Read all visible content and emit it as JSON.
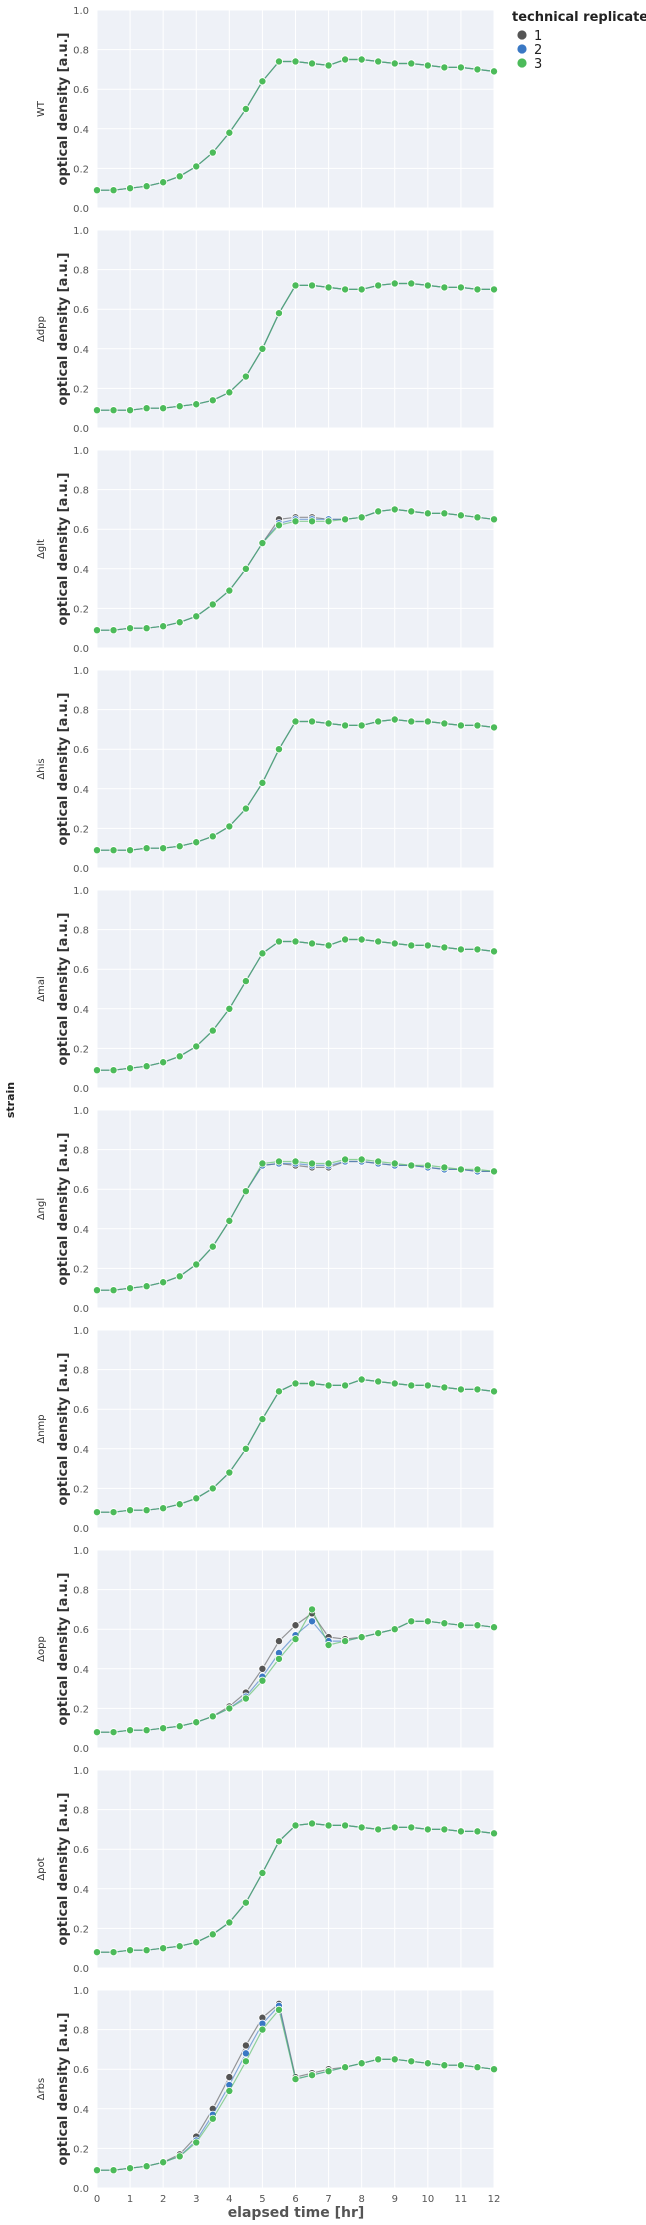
{
  "legend": {
    "title": "technical replicate",
    "entries": [
      {
        "label": "1",
        "color": "#555555"
      },
      {
        "label": "2",
        "color": "#3a78c4"
      },
      {
        "label": "3",
        "color": "#4cbb5a"
      }
    ]
  },
  "labels": {
    "y": "optical density [a.u.]",
    "x": "elapsed time [hr]",
    "row": "strain"
  },
  "chart_data": {
    "type": "scatter",
    "xlim": [
      0,
      12
    ],
    "ylim": [
      0,
      1.0
    ],
    "x_ticks": [
      "0",
      "1",
      "2",
      "3",
      "4",
      "5",
      "6",
      "7",
      "8",
      "9",
      "10",
      "11",
      "12"
    ],
    "y_ticks": [
      "0.0",
      "0.2",
      "0.4",
      "0.6",
      "0.8",
      "1.0"
    ],
    "grid": true,
    "legend_placement": "top-right, outside",
    "x": [
      0.0,
      0.5,
      1.0,
      1.5,
      2.0,
      2.5,
      3.0,
      3.5,
      4.0,
      4.5,
      5.0,
      5.5,
      6.0,
      6.5,
      7.0,
      7.5,
      8.0,
      8.5,
      9.0,
      9.5,
      10.0,
      10.5,
      11.0,
      11.5,
      12.0
    ],
    "panels": [
      {
        "strain": "WT",
        "series": [
          {
            "name": "1",
            "values": [
              0.09,
              0.09,
              0.1,
              0.11,
              0.13,
              0.16,
              0.21,
              0.28,
              0.38,
              0.5,
              0.64,
              0.74,
              0.74,
              0.73,
              0.72,
              0.75,
              0.75,
              0.74,
              0.73,
              0.73,
              0.72,
              0.71,
              0.71,
              0.7,
              0.69
            ]
          },
          {
            "name": "2",
            "values": [
              0.09,
              0.09,
              0.1,
              0.11,
              0.13,
              0.16,
              0.21,
              0.28,
              0.38,
              0.5,
              0.64,
              0.74,
              0.74,
              0.73,
              0.72,
              0.75,
              0.75,
              0.74,
              0.73,
              0.73,
              0.72,
              0.71,
              0.71,
              0.7,
              0.69
            ]
          },
          {
            "name": "3",
            "values": [
              0.09,
              0.09,
              0.1,
              0.11,
              0.13,
              0.16,
              0.21,
              0.28,
              0.38,
              0.5,
              0.64,
              0.74,
              0.74,
              0.73,
              0.72,
              0.75,
              0.75,
              0.74,
              0.73,
              0.73,
              0.72,
              0.71,
              0.71,
              0.7,
              0.69
            ]
          }
        ]
      },
      {
        "strain": "Δdpp",
        "series": [
          {
            "name": "1",
            "values": [
              0.09,
              0.09,
              0.09,
              0.1,
              0.1,
              0.11,
              0.12,
              0.14,
              0.18,
              0.26,
              0.4,
              0.58,
              0.72,
              0.72,
              0.71,
              0.7,
              0.7,
              0.72,
              0.73,
              0.73,
              0.72,
              0.71,
              0.71,
              0.7,
              0.7
            ]
          },
          {
            "name": "2",
            "values": [
              0.09,
              0.09,
              0.09,
              0.1,
              0.1,
              0.11,
              0.12,
              0.14,
              0.18,
              0.26,
              0.4,
              0.58,
              0.72,
              0.72,
              0.71,
              0.7,
              0.7,
              0.72,
              0.73,
              0.73,
              0.72,
              0.71,
              0.71,
              0.7,
              0.7
            ]
          },
          {
            "name": "3",
            "values": [
              0.09,
              0.09,
              0.09,
              0.1,
              0.1,
              0.11,
              0.12,
              0.14,
              0.18,
              0.26,
              0.4,
              0.58,
              0.72,
              0.72,
              0.71,
              0.7,
              0.7,
              0.72,
              0.73,
              0.73,
              0.72,
              0.71,
              0.71,
              0.7,
              0.7
            ]
          }
        ]
      },
      {
        "strain": "Δglt",
        "series": [
          {
            "name": "1",
            "values": [
              0.09,
              0.09,
              0.1,
              0.1,
              0.11,
              0.13,
              0.16,
              0.22,
              0.29,
              0.4,
              0.53,
              0.65,
              0.66,
              0.66,
              0.65,
              0.65,
              0.66,
              0.69,
              0.7,
              0.69,
              0.68,
              0.68,
              0.67,
              0.66,
              0.65
            ]
          },
          {
            "name": "2",
            "values": [
              0.09,
              0.09,
              0.1,
              0.1,
              0.11,
              0.13,
              0.16,
              0.22,
              0.29,
              0.4,
              0.53,
              0.63,
              0.65,
              0.65,
              0.65,
              0.65,
              0.66,
              0.69,
              0.7,
              0.69,
              0.68,
              0.68,
              0.67,
              0.66,
              0.65
            ]
          },
          {
            "name": "3",
            "values": [
              0.09,
              0.09,
              0.1,
              0.1,
              0.11,
              0.13,
              0.16,
              0.22,
              0.29,
              0.4,
              0.53,
              0.62,
              0.64,
              0.64,
              0.64,
              0.65,
              0.66,
              0.69,
              0.7,
              0.69,
              0.68,
              0.68,
              0.67,
              0.66,
              0.65
            ]
          }
        ]
      },
      {
        "strain": "Δhis",
        "series": [
          {
            "name": "1",
            "values": [
              0.09,
              0.09,
              0.09,
              0.1,
              0.1,
              0.11,
              0.13,
              0.16,
              0.21,
              0.3,
              0.43,
              0.6,
              0.74,
              0.74,
              0.73,
              0.72,
              0.72,
              0.74,
              0.75,
              0.74,
              0.74,
              0.73,
              0.72,
              0.72,
              0.71
            ]
          },
          {
            "name": "2",
            "values": [
              0.09,
              0.09,
              0.09,
              0.1,
              0.1,
              0.11,
              0.13,
              0.16,
              0.21,
              0.3,
              0.43,
              0.6,
              0.74,
              0.74,
              0.73,
              0.72,
              0.72,
              0.74,
              0.75,
              0.74,
              0.74,
              0.73,
              0.72,
              0.72,
              0.71
            ]
          },
          {
            "name": "3",
            "values": [
              0.09,
              0.09,
              0.09,
              0.1,
              0.1,
              0.11,
              0.13,
              0.16,
              0.21,
              0.3,
              0.43,
              0.6,
              0.74,
              0.74,
              0.73,
              0.72,
              0.72,
              0.74,
              0.75,
              0.74,
              0.74,
              0.73,
              0.72,
              0.72,
              0.71
            ]
          }
        ]
      },
      {
        "strain": "Δmal",
        "series": [
          {
            "name": "1",
            "values": [
              0.09,
              0.09,
              0.1,
              0.11,
              0.13,
              0.16,
              0.21,
              0.29,
              0.4,
              0.54,
              0.68,
              0.74,
              0.74,
              0.73,
              0.72,
              0.75,
              0.75,
              0.74,
              0.73,
              0.72,
              0.72,
              0.71,
              0.7,
              0.7,
              0.69
            ]
          },
          {
            "name": "2",
            "values": [
              0.09,
              0.09,
              0.1,
              0.11,
              0.13,
              0.16,
              0.21,
              0.29,
              0.4,
              0.54,
              0.68,
              0.74,
              0.74,
              0.73,
              0.72,
              0.75,
              0.75,
              0.74,
              0.73,
              0.72,
              0.72,
              0.71,
              0.7,
              0.7,
              0.69
            ]
          },
          {
            "name": "3",
            "values": [
              0.09,
              0.09,
              0.1,
              0.11,
              0.13,
              0.16,
              0.21,
              0.29,
              0.4,
              0.54,
              0.68,
              0.74,
              0.74,
              0.73,
              0.72,
              0.75,
              0.75,
              0.74,
              0.73,
              0.72,
              0.72,
              0.71,
              0.7,
              0.7,
              0.69
            ]
          }
        ]
      },
      {
        "strain": "Δngl",
        "series": [
          {
            "name": "1",
            "values": [
              0.09,
              0.09,
              0.1,
              0.11,
              0.13,
              0.16,
              0.22,
              0.31,
              0.44,
              0.59,
              0.72,
              0.73,
              0.72,
              0.71,
              0.71,
              0.74,
              0.74,
              0.73,
              0.72,
              0.72,
              0.71,
              0.7,
              0.7,
              0.69,
              0.69
            ]
          },
          {
            "name": "2",
            "values": [
              0.09,
              0.09,
              0.1,
              0.11,
              0.13,
              0.16,
              0.22,
              0.31,
              0.44,
              0.59,
              0.72,
              0.73,
              0.73,
              0.72,
              0.72,
              0.74,
              0.74,
              0.73,
              0.72,
              0.72,
              0.71,
              0.7,
              0.7,
              0.69,
              0.69
            ]
          },
          {
            "name": "3",
            "values": [
              0.09,
              0.09,
              0.1,
              0.11,
              0.13,
              0.16,
              0.22,
              0.31,
              0.44,
              0.59,
              0.73,
              0.74,
              0.74,
              0.73,
              0.73,
              0.75,
              0.75,
              0.74,
              0.73,
              0.72,
              0.72,
              0.71,
              0.7,
              0.7,
              0.69
            ]
          }
        ]
      },
      {
        "strain": "Δnmp",
        "series": [
          {
            "name": "1",
            "values": [
              0.08,
              0.08,
              0.09,
              0.09,
              0.1,
              0.12,
              0.15,
              0.2,
              0.28,
              0.4,
              0.55,
              0.69,
              0.73,
              0.73,
              0.72,
              0.72,
              0.75,
              0.74,
              0.73,
              0.72,
              0.72,
              0.71,
              0.7,
              0.7,
              0.69
            ]
          },
          {
            "name": "2",
            "values": [
              0.08,
              0.08,
              0.09,
              0.09,
              0.1,
              0.12,
              0.15,
              0.2,
              0.28,
              0.4,
              0.55,
              0.69,
              0.73,
              0.73,
              0.72,
              0.72,
              0.75,
              0.74,
              0.73,
              0.72,
              0.72,
              0.71,
              0.7,
              0.7,
              0.69
            ]
          },
          {
            "name": "3",
            "values": [
              0.08,
              0.08,
              0.09,
              0.09,
              0.1,
              0.12,
              0.15,
              0.2,
              0.28,
              0.4,
              0.55,
              0.69,
              0.73,
              0.73,
              0.72,
              0.72,
              0.75,
              0.74,
              0.73,
              0.72,
              0.72,
              0.71,
              0.7,
              0.7,
              0.69
            ]
          }
        ]
      },
      {
        "strain": "Δopp",
        "series": [
          {
            "name": "1",
            "values": [
              0.08,
              0.08,
              0.09,
              0.09,
              0.1,
              0.11,
              0.13,
              0.16,
              0.21,
              0.28,
              0.4,
              0.54,
              0.62,
              0.68,
              0.56,
              0.55,
              0.56,
              0.58,
              0.6,
              0.64,
              0.64,
              0.63,
              0.62,
              0.62,
              0.61
            ]
          },
          {
            "name": "2",
            "values": [
              0.08,
              0.08,
              0.09,
              0.09,
              0.1,
              0.11,
              0.13,
              0.16,
              0.2,
              0.26,
              0.36,
              0.48,
              0.57,
              0.64,
              0.54,
              0.54,
              0.56,
              0.58,
              0.6,
              0.64,
              0.64,
              0.63,
              0.62,
              0.62,
              0.61
            ]
          },
          {
            "name": "3",
            "values": [
              0.08,
              0.08,
              0.09,
              0.09,
              0.1,
              0.11,
              0.13,
              0.16,
              0.2,
              0.25,
              0.34,
              0.45,
              0.55,
              0.7,
              0.52,
              0.54,
              0.56,
              0.58,
              0.6,
              0.64,
              0.64,
              0.63,
              0.62,
              0.62,
              0.61
            ]
          }
        ]
      },
      {
        "strain": "Δpot",
        "series": [
          {
            "name": "1",
            "values": [
              0.08,
              0.08,
              0.09,
              0.09,
              0.1,
              0.11,
              0.13,
              0.17,
              0.23,
              0.33,
              0.48,
              0.64,
              0.72,
              0.73,
              0.72,
              0.72,
              0.71,
              0.7,
              0.71,
              0.71,
              0.7,
              0.7,
              0.69,
              0.69,
              0.68
            ]
          },
          {
            "name": "2",
            "values": [
              0.08,
              0.08,
              0.09,
              0.09,
              0.1,
              0.11,
              0.13,
              0.17,
              0.23,
              0.33,
              0.48,
              0.64,
              0.72,
              0.73,
              0.72,
              0.72,
              0.71,
              0.7,
              0.71,
              0.71,
              0.7,
              0.7,
              0.69,
              0.69,
              0.68
            ]
          },
          {
            "name": "3",
            "values": [
              0.08,
              0.08,
              0.09,
              0.09,
              0.1,
              0.11,
              0.13,
              0.17,
              0.23,
              0.33,
              0.48,
              0.64,
              0.72,
              0.73,
              0.72,
              0.72,
              0.71,
              0.7,
              0.71,
              0.71,
              0.7,
              0.7,
              0.69,
              0.69,
              0.68
            ]
          }
        ]
      },
      {
        "strain": "Δrbs",
        "series": [
          {
            "name": "1",
            "values": [
              0.09,
              0.09,
              0.1,
              0.11,
              0.13,
              0.17,
              0.26,
              0.4,
              0.56,
              0.72,
              0.86,
              0.93,
              0.56,
              0.58,
              0.6,
              0.61,
              0.63,
              0.65,
              0.65,
              0.64,
              0.63,
              0.62,
              0.62,
              0.61,
              0.6
            ]
          },
          {
            "name": "2",
            "values": [
              0.09,
              0.09,
              0.1,
              0.11,
              0.13,
              0.16,
              0.24,
              0.37,
              0.52,
              0.68,
              0.83,
              0.92,
              0.55,
              0.57,
              0.59,
              0.61,
              0.63,
              0.65,
              0.65,
              0.64,
              0.63,
              0.62,
              0.62,
              0.61,
              0.6
            ]
          },
          {
            "name": "3",
            "values": [
              0.09,
              0.09,
              0.1,
              0.11,
              0.13,
              0.16,
              0.23,
              0.35,
              0.49,
              0.64,
              0.8,
              0.9,
              0.55,
              0.57,
              0.59,
              0.61,
              0.63,
              0.65,
              0.65,
              0.64,
              0.63,
              0.62,
              0.62,
              0.61,
              0.6
            ]
          }
        ]
      }
    ]
  }
}
